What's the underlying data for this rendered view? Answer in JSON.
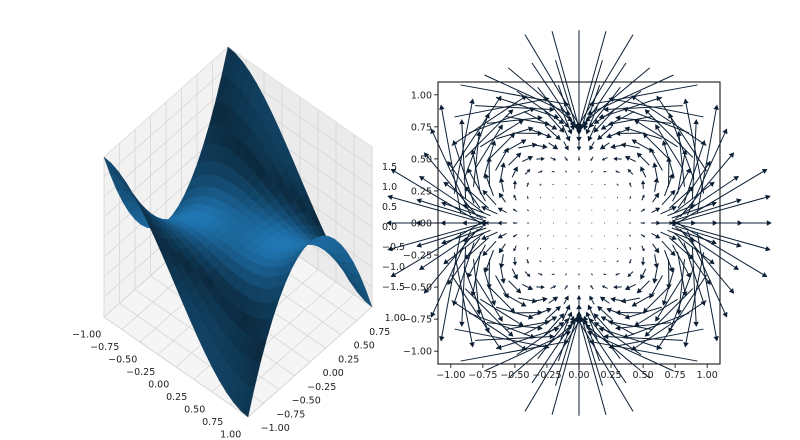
{
  "figure": {
    "background": "#ffffff"
  },
  "chart_data": [
    {
      "type": "surface",
      "title": "",
      "xlabel": "",
      "ylabel": "",
      "zlabel": "",
      "function": "z = x^3 - 3*x*y^2 (monkey saddle)",
      "xlim": [
        -1.0,
        1.0
      ],
      "ylim": [
        -1.0,
        1.0
      ],
      "zlim": [
        -2.0,
        2.0
      ],
      "x_ticks": [
        "−1.00",
        "−0.75",
        "−0.50",
        "−0.25",
        "0.00",
        "0.25",
        "0.50",
        "0.75",
        "1.00"
      ],
      "y_ticks": [
        "−1.00",
        "−0.75",
        "−0.50",
        "−0.25",
        "0.00",
        "0.25",
        "0.50",
        "0.75",
        "1.00"
      ],
      "z_ticks": [
        "−1.5",
        "−1.0",
        "−0.5",
        "0.0",
        "0.5",
        "1.0",
        "1.5"
      ],
      "grid": true,
      "colors": {
        "surface": "#1f77b4",
        "pane": "#f2f2f2",
        "grid": "#d6d6d6"
      }
    },
    {
      "type": "quiver",
      "title": "",
      "xlabel": "",
      "ylabel": "",
      "xlim": [
        -1.1,
        1.1
      ],
      "ylim": [
        -1.1,
        1.1
      ],
      "x_ticks": [
        "−1.00",
        "−0.75",
        "−0.50",
        "−0.25",
        "0.00",
        "0.25",
        "0.50",
        "0.75",
        "1.00"
      ],
      "y_ticks": [
        "1.00",
        "0.75",
        "0.50",
        "0.25",
        "0.00",
        "−0.25",
        "−0.50",
        "−0.75",
        "−1.00"
      ],
      "field": "gradient-like field, magnitude growing with radius, points within unit radius (r <= 1.1)",
      "grid": false,
      "colors": {
        "arrow": "#0b1e33"
      }
    }
  ]
}
